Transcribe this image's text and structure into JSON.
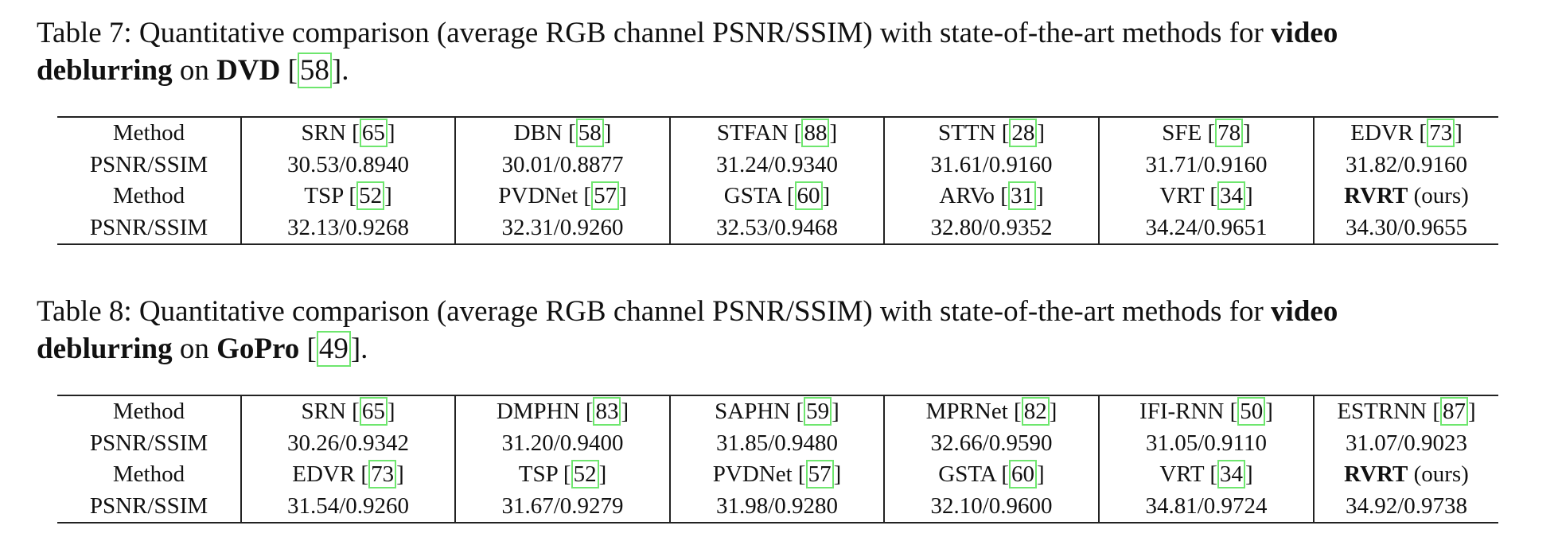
{
  "tables": [
    {
      "caption": [
        [
          {
            "t": "Table 7: Quantitative comparison (average RGB channel PSNR/SSIM) with state-of-the-art methods for "
          },
          {
            "t": "video",
            "bold": true
          }
        ],
        [
          {
            "t": "deblurring",
            "bold": true
          },
          {
            "t": " on "
          },
          {
            "t": "DVD",
            "bold": true
          },
          {
            "t": " ["
          },
          {
            "t": "58",
            "cite": true
          },
          {
            "t": "]."
          }
        ]
      ],
      "rows": [
        [
          "Method",
          [
            {
              "t": "SRN ["
            },
            {
              "t": "65",
              "cite": true
            },
            {
              "t": "]"
            }
          ],
          [
            {
              "t": "DBN ["
            },
            {
              "t": "58",
              "cite": true
            },
            {
              "t": "]"
            }
          ],
          [
            {
              "t": "STFAN ["
            },
            {
              "t": "88",
              "cite": true
            },
            {
              "t": "]"
            }
          ],
          [
            {
              "t": "STTN ["
            },
            {
              "t": "28",
              "cite": true
            },
            {
              "t": "]"
            }
          ],
          [
            {
              "t": "SFE ["
            },
            {
              "t": "78",
              "cite": true
            },
            {
              "t": "]"
            }
          ],
          [
            {
              "t": "EDVR ["
            },
            {
              "t": "73",
              "cite": true
            },
            {
              "t": "]"
            }
          ]
        ],
        [
          "PSNR/SSIM",
          "30.53/0.8940",
          "30.01/0.8877",
          "31.24/0.9340",
          "31.61/0.9160",
          "31.71/0.9160",
          "31.82/0.9160"
        ],
        [
          "Method",
          [
            {
              "t": "TSP ["
            },
            {
              "t": "52",
              "cite": true
            },
            {
              "t": "]"
            }
          ],
          [
            {
              "t": "PVDNet ["
            },
            {
              "t": "57",
              "cite": true
            },
            {
              "t": "]"
            }
          ],
          [
            {
              "t": "GSTA ["
            },
            {
              "t": "60",
              "cite": true
            },
            {
              "t": "]"
            }
          ],
          [
            {
              "t": "ARVo ["
            },
            {
              "t": "31",
              "cite": true
            },
            {
              "t": "]"
            }
          ],
          [
            {
              "t": "VRT ["
            },
            {
              "t": "34",
              "cite": true
            },
            {
              "t": "]"
            }
          ],
          [
            {
              "t": "RVRT",
              "bold": true
            },
            {
              "t": " (ours)"
            }
          ]
        ],
        [
          "PSNR/SSIM",
          "32.13/0.9268",
          "32.31/0.9260",
          "32.53/0.9468",
          "32.80/0.9352",
          "34.24/0.9651",
          "34.30/0.9655"
        ]
      ]
    },
    {
      "caption": [
        [
          {
            "t": "Table 8: Quantitative comparison (average RGB channel PSNR/SSIM) with state-of-the-art methods for "
          },
          {
            "t": "video",
            "bold": true
          }
        ],
        [
          {
            "t": "deblurring",
            "bold": true
          },
          {
            "t": " on "
          },
          {
            "t": "GoPro",
            "bold": true
          },
          {
            "t": " ["
          },
          {
            "t": "49",
            "cite": true
          },
          {
            "t": "]."
          }
        ]
      ],
      "rows": [
        [
          "Method",
          [
            {
              "t": "SRN ["
            },
            {
              "t": "65",
              "cite": true
            },
            {
              "t": "]"
            }
          ],
          [
            {
              "t": "DMPHN ["
            },
            {
              "t": "83",
              "cite": true
            },
            {
              "t": "]"
            }
          ],
          [
            {
              "t": "SAPHN ["
            },
            {
              "t": "59",
              "cite": true
            },
            {
              "t": "]"
            }
          ],
          [
            {
              "t": "MPRNet ["
            },
            {
              "t": "82",
              "cite": true
            },
            {
              "t": "]"
            }
          ],
          [
            {
              "t": "IFI-RNN ["
            },
            {
              "t": "50",
              "cite": true
            },
            {
              "t": "]"
            }
          ],
          [
            {
              "t": "ESTRNN ["
            },
            {
              "t": "87",
              "cite": true
            },
            {
              "t": "]"
            }
          ]
        ],
        [
          "PSNR/SSIM",
          "30.26/0.9342",
          "31.20/0.9400",
          "31.85/0.9480",
          "32.66/0.9590",
          "31.05/0.9110",
          "31.07/0.9023"
        ],
        [
          "Method",
          [
            {
              "t": "EDVR ["
            },
            {
              "t": "73",
              "cite": true
            },
            {
              "t": "]"
            }
          ],
          [
            {
              "t": "TSP ["
            },
            {
              "t": "52",
              "cite": true
            },
            {
              "t": "]"
            }
          ],
          [
            {
              "t": "PVDNet ["
            },
            {
              "t": "57",
              "cite": true
            },
            {
              "t": "]"
            }
          ],
          [
            {
              "t": "GSTA ["
            },
            {
              "t": "60",
              "cite": true
            },
            {
              "t": "]"
            }
          ],
          [
            {
              "t": "VRT ["
            },
            {
              "t": "34",
              "cite": true
            },
            {
              "t": "]"
            }
          ],
          [
            {
              "t": "RVRT",
              "bold": true
            },
            {
              "t": " (ours)"
            }
          ]
        ],
        [
          "PSNR/SSIM",
          "31.54/0.9260",
          "31.67/0.9279",
          "31.98/0.9280",
          "32.10/0.9600",
          "34.81/0.9724",
          "34.92/0.9738"
        ]
      ]
    }
  ]
}
